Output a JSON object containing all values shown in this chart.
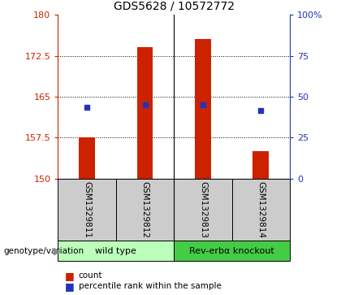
{
  "title": "GDS5628 / 10572772",
  "samples": [
    "GSM1329811",
    "GSM1329812",
    "GSM1329813",
    "GSM1329814"
  ],
  "bar_values": [
    157.5,
    174.0,
    175.5,
    155.0
  ],
  "bar_baseline": 150,
  "percentile_values": [
    163.0,
    163.5,
    163.5,
    162.5
  ],
  "ylim_left": [
    150,
    180
  ],
  "ylim_right": [
    0,
    100
  ],
  "yticks_left": [
    150,
    157.5,
    165,
    172.5,
    180
  ],
  "yticks_right": [
    0,
    25,
    50,
    75,
    100
  ],
  "bar_color": "#cc2200",
  "blue_color": "#2233bb",
  "groups": [
    {
      "label": "wild type",
      "samples": [
        0,
        1
      ],
      "color": "#bbffbb"
    },
    {
      "label": "Rev-erbα knockout",
      "samples": [
        2,
        3
      ],
      "color": "#44cc44"
    }
  ],
  "group_label": "genotype/variation",
  "legend_count": "count",
  "legend_percentile": "percentile rank within the sample",
  "title_fontsize": 10,
  "tick_fontsize": 8,
  "sample_fontsize": 7.5,
  "group_fontsize": 8
}
